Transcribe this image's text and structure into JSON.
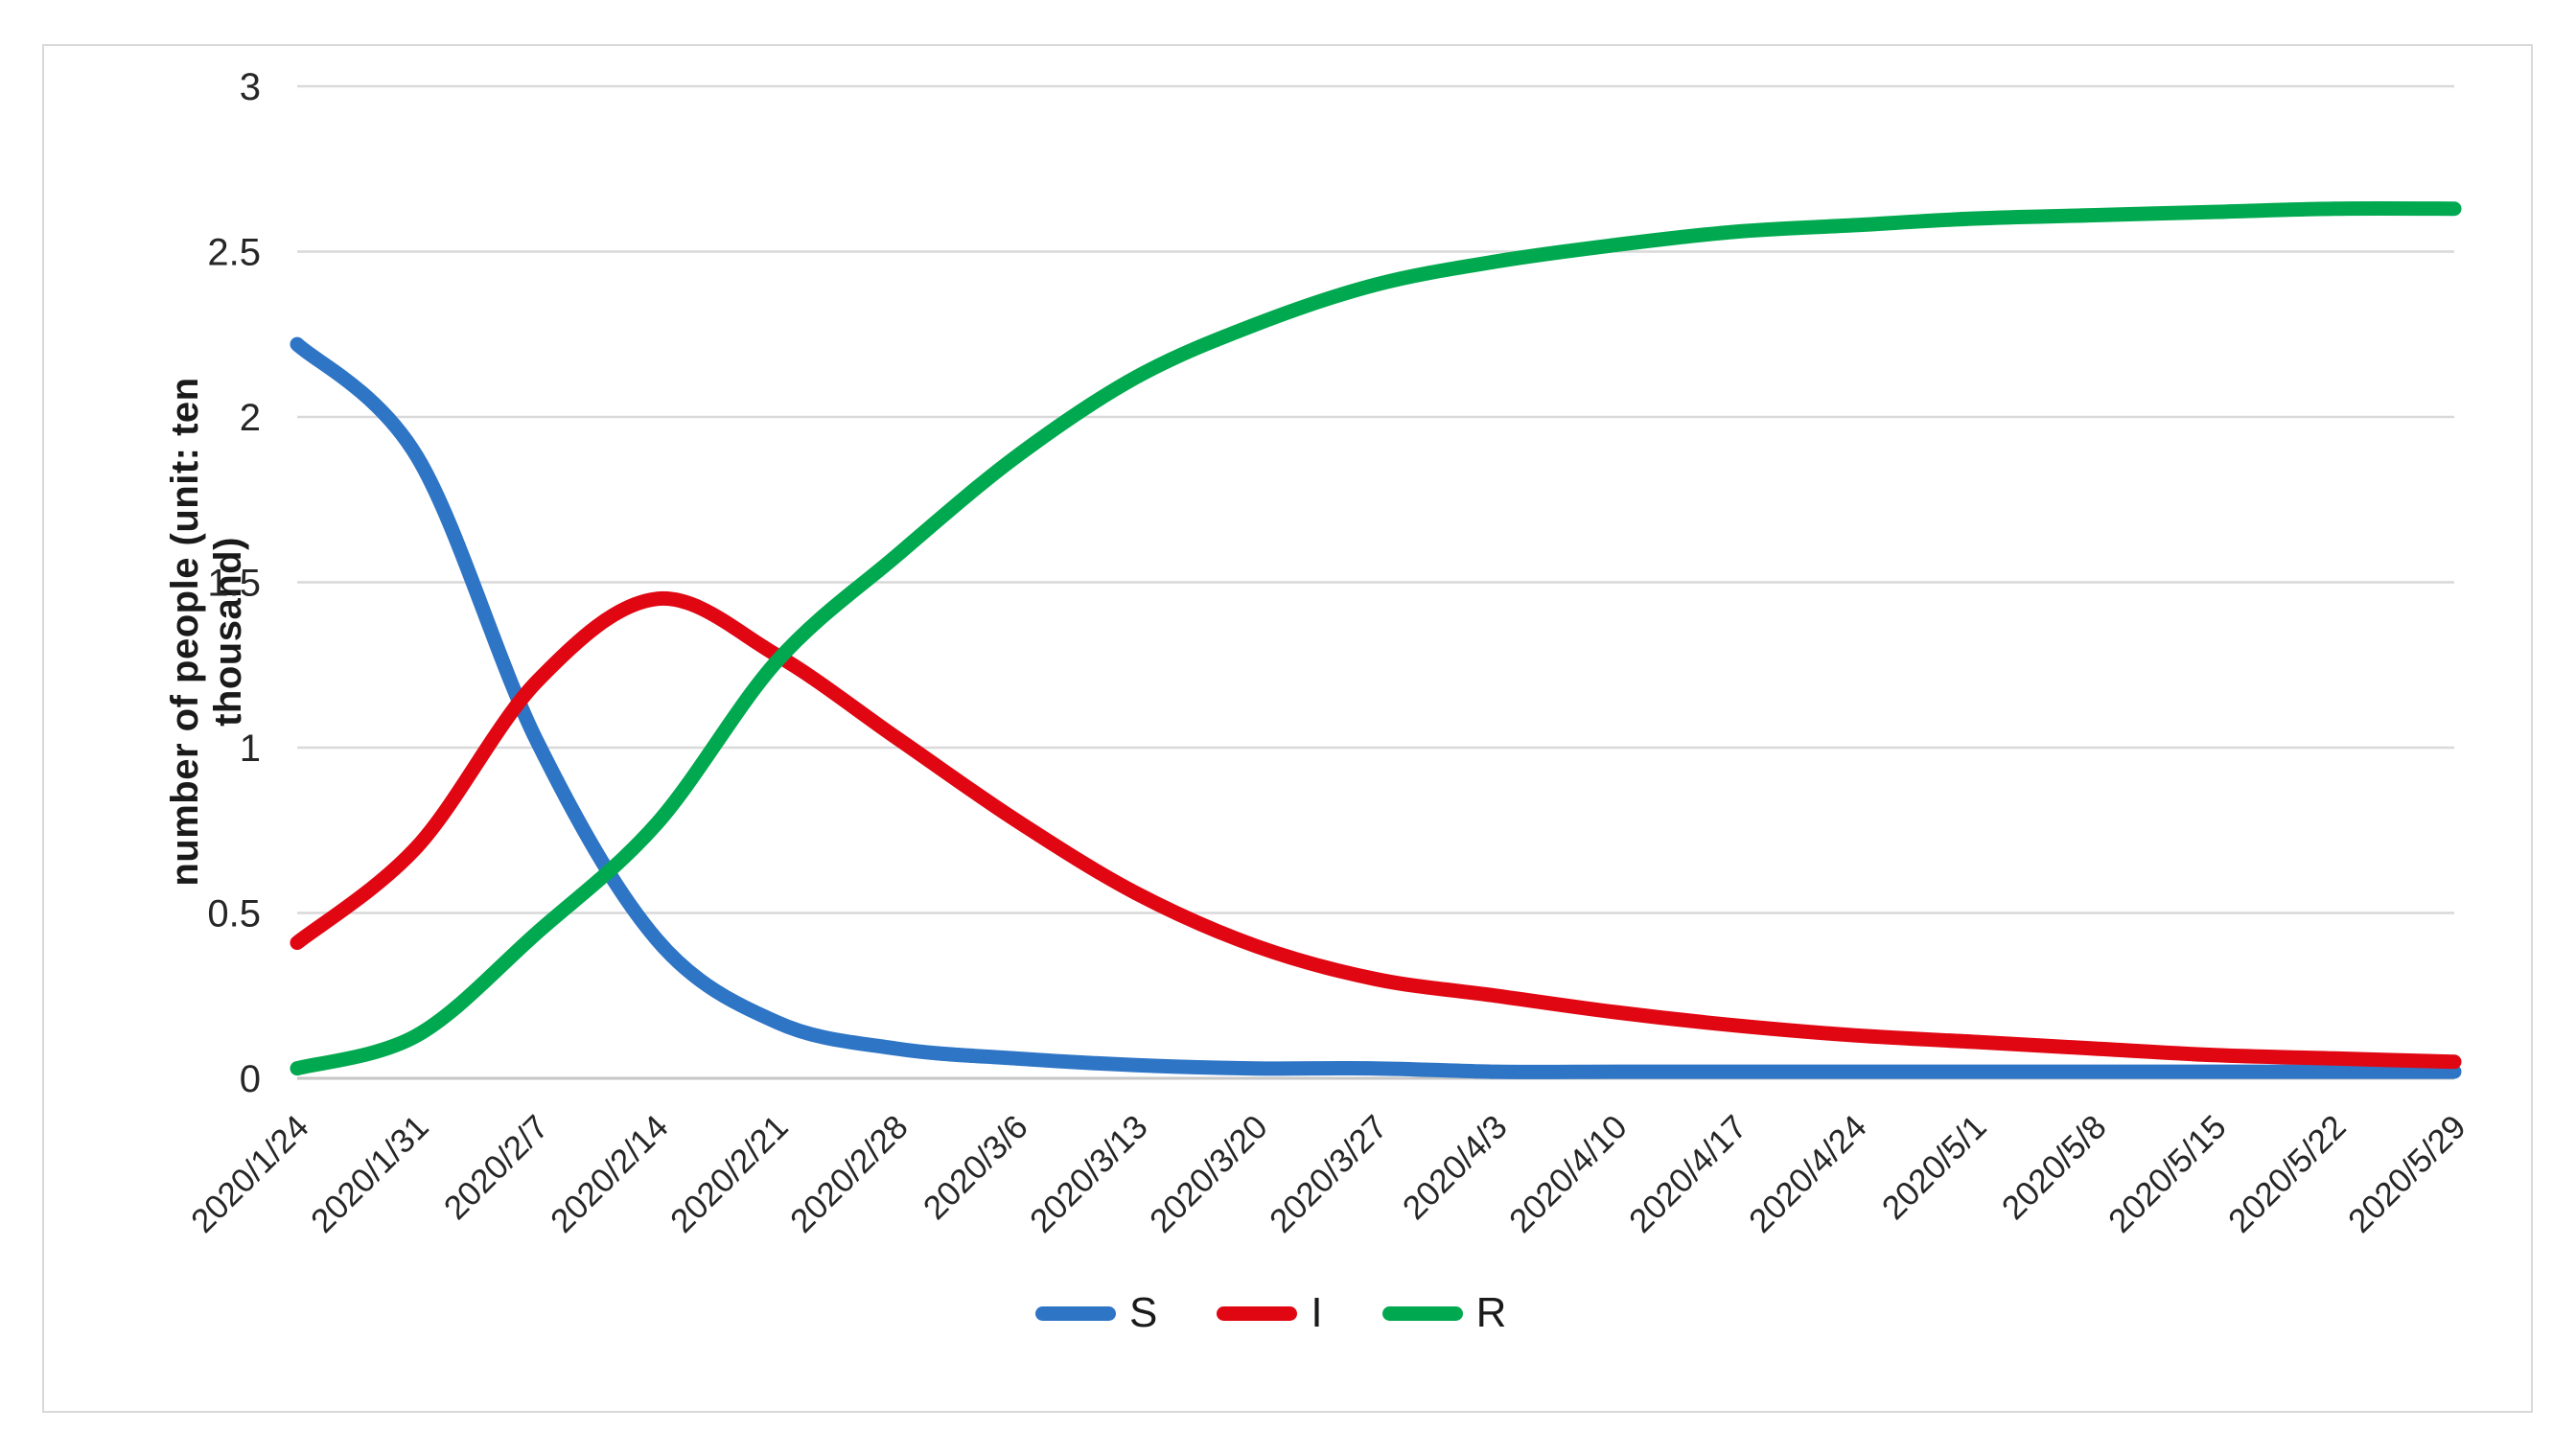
{
  "figure": {
    "background": "#ffffff",
    "frame_border_color": "#d9d9d9"
  },
  "chart_data": {
    "type": "line",
    "title": "",
    "xlabel": "",
    "ylabel": "number of people (unit: ten thousand)",
    "ylim": [
      0,
      3
    ],
    "yticks": [
      0,
      0.5,
      1,
      1.5,
      2,
      2.5,
      3
    ],
    "ytick_labels": [
      "0",
      "0.5",
      "1",
      "1.5",
      "2",
      "2.5",
      "3"
    ],
    "grid": true,
    "gridline_color": "#d9d9d9",
    "axis_line_color": "#c6c6c6",
    "legend_position": "bottom",
    "categories": [
      "2020/1/24",
      "2020/1/31",
      "2020/2/7",
      "2020/2/14",
      "2020/2/21",
      "2020/2/28",
      "2020/3/6",
      "2020/3/13",
      "2020/3/20",
      "2020/3/27",
      "2020/4/3",
      "2020/4/10",
      "2020/4/17",
      "2020/4/24",
      "2020/5/1",
      "2020/5/8",
      "2020/5/15",
      "2020/5/22",
      "2020/5/29"
    ],
    "series": [
      {
        "name": "S",
        "color": "#2e75c6",
        "values": [
          2.22,
          1.88,
          1.02,
          0.42,
          0.17,
          0.09,
          0.06,
          0.04,
          0.03,
          0.03,
          0.02,
          0.02,
          0.02,
          0.02,
          0.02,
          0.02,
          0.02,
          0.02,
          0.02
        ]
      },
      {
        "name": "I",
        "color": "#e00713",
        "values": [
          0.41,
          0.7,
          1.2,
          1.45,
          1.28,
          1.03,
          0.78,
          0.56,
          0.4,
          0.3,
          0.25,
          0.2,
          0.16,
          0.13,
          0.11,
          0.09,
          0.07,
          0.06,
          0.05
        ]
      },
      {
        "name": "R",
        "color": "#00a94f",
        "values": [
          0.03,
          0.13,
          0.44,
          0.77,
          1.26,
          1.58,
          1.88,
          2.12,
          2.28,
          2.4,
          2.47,
          2.52,
          2.56,
          2.58,
          2.6,
          2.61,
          2.62,
          2.63,
          2.63
        ]
      }
    ]
  }
}
